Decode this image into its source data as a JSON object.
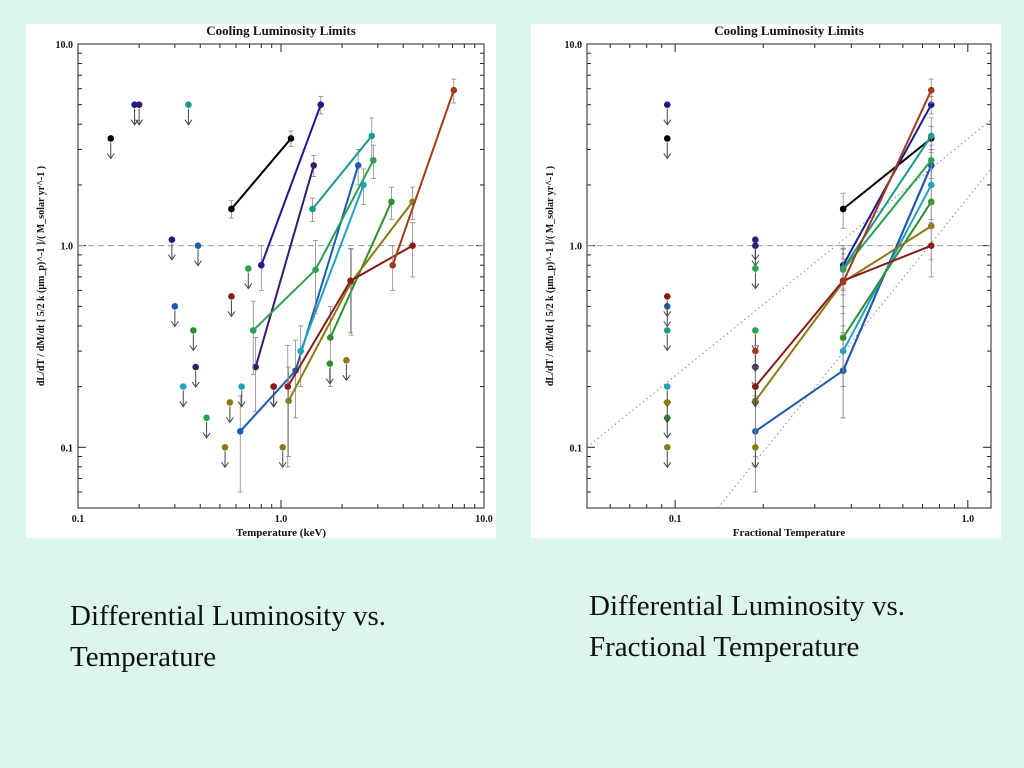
{
  "slide": {
    "background": "#dcf5ee",
    "captions": {
      "left": {
        "line1": "Differential Luminosity vs.",
        "line2": "Temperature"
      },
      "right": {
        "line1": "Differential Luminosity vs.",
        "line2": "Fractional Temperature"
      }
    }
  },
  "chart_data": [
    {
      "type": "scatter",
      "title": "Cooling Luminosity Limits",
      "xlabel": "Temperature (keV)",
      "ylabel": "dL/dT / dM/dt [ 5/2 k (μm_p)^-1 ]/( M_solar yr^-1 )",
      "xscale": "log",
      "yscale": "log",
      "xlim": [
        0.1,
        10.0
      ],
      "ylim": [
        0.05,
        10.0
      ],
      "x_ticks": [
        "0.1",
        "1.0",
        "10.0"
      ],
      "y_ticks": [
        "0.1",
        "1.0",
        "10.0"
      ],
      "reference_line_y": 1.0,
      "series": [
        {
          "color": "#000000",
          "limit": [
            0.145,
            3.4
          ],
          "points": [
            [
              0.57,
              1.52
            ],
            [
              1.12,
              3.4
            ]
          ],
          "err": [
            0.15,
            0.3
          ]
        },
        {
          "color": "#1a1a8c",
          "limit": [
            0.19,
            5.0
          ],
          "points": [
            [
              0.8,
              0.8
            ],
            [
              1.57,
              5.0
            ]
          ],
          "err": [
            0.2,
            0.5
          ]
        },
        {
          "color": "#3a1a6b",
          "limit": [
            0.2,
            5.0
          ],
          "points": [
            [
              0.75,
              0.25
            ],
            [
              1.45,
              2.5
            ]
          ],
          "err": [
            0.1,
            0.3
          ]
        },
        {
          "color": "#1e5bb0",
          "limit": [
            0.39,
            1.0
          ],
          "points": [
            [
              0.63,
              0.12
            ],
            [
              1.18,
              0.24
            ],
            [
              2.4,
              2.5
            ]
          ],
          "err": [
            0.06,
            0.1,
            0.5
          ]
        },
        {
          "color": "#1a9a8a",
          "limit": [
            0.35,
            5.0
          ],
          "points": [
            [
              1.43,
              1.52
            ],
            [
              2.8,
              3.5
            ]
          ],
          "err": [
            0.2,
            0.8
          ]
        },
        {
          "color": "#1fa3c0",
          "limit": [
            0.33,
            0.2
          ],
          "points": [
            [
              1.25,
              0.3
            ],
            [
              2.55,
              2.0
            ]
          ],
          "err": [
            0.1,
            0.4
          ]
        },
        {
          "color": "#2f8f2f",
          "limit": [
            0.37,
            0.38
          ],
          "points": [
            [
              1.75,
              0.35
            ],
            [
              3.5,
              1.65
            ]
          ],
          "err": [
            0.15,
            0.3
          ]
        },
        {
          "color": "#2ba050",
          "limit": [
            0.43,
            0.14
          ],
          "points": [
            [
              0.73,
              0.38
            ],
            [
              1.48,
              0.76
            ],
            [
              2.85,
              2.65
            ]
          ],
          "err": [
            0.15,
            0.3,
            0.5
          ]
        },
        {
          "color": "#8a7a10",
          "limit": [
            0.53,
            0.1
          ],
          "points": [
            [
              1.09,
              0.17
            ],
            [
              2.22,
              0.66
            ],
            [
              4.45,
              1.65
            ]
          ],
          "err": [
            0.08,
            0.3,
            0.3
          ]
        },
        {
          "color": "#8a1a1a",
          "limit": [
            0.57,
            0.56
          ],
          "points": [
            [
              1.08,
              0.2
            ],
            [
              2.2,
              0.67
            ],
            [
              4.45,
              1.0
            ]
          ],
          "err": [
            0.12,
            0.3,
            0.3
          ]
        },
        {
          "color": "#a33a1a",
          "limit": [
            0.92,
            0.2
          ],
          "points": [
            [
              3.55,
              0.8
            ],
            [
              7.1,
              5.9
            ]
          ],
          "err": [
            0.2,
            0.8
          ]
        }
      ],
      "extra_limits": [
        {
          "color": "#1a1a8c",
          "x": 0.29,
          "y": 1.07
        },
        {
          "color": "#1e5bb0",
          "x": 0.3,
          "y": 0.5
        },
        {
          "color": "#3a1a6b",
          "x": 0.38,
          "y": 0.25
        },
        {
          "color": "#1fa3c0",
          "x": 0.64,
          "y": 0.2
        },
        {
          "color": "#2ba050",
          "x": 0.69,
          "y": 0.77
        },
        {
          "color": "#8a7a10",
          "x": 0.56,
          "y": 0.167
        },
        {
          "color": "#8a1a1a",
          "x": 0.92,
          "y": 0.2
        },
        {
          "color": "#2f8f2f",
          "x": 1.74,
          "y": 0.26
        },
        {
          "color": "#8a7a10",
          "x": 1.02,
          "y": 0.1
        },
        {
          "color": "#8a7a10",
          "x": 2.1,
          "y": 0.27
        }
      ]
    },
    {
      "type": "scatter",
      "title": "Cooling Luminosity Limits",
      "xlabel": "Fractional Temperature",
      "ylabel": "dL/dT / dM/dt [ 5/2 k (μm_p)^-1 ]/( M_solar yr^-1 )",
      "xscale": "log",
      "yscale": "log",
      "xlim": [
        0.05,
        1.2
      ],
      "ylim": [
        0.05,
        10.0
      ],
      "x_ticks": [
        "0.1",
        "1.0"
      ],
      "y_ticks": [
        "0.1",
        "1.0",
        "10.0"
      ],
      "reference_line_y": 1.0,
      "dotted_lines": [
        {
          "from": [
            0.05,
            0.1
          ],
          "to": [
            1.2,
            4.2
          ]
        },
        {
          "from": [
            0.14,
            0.05
          ],
          "to": [
            1.2,
            2.4
          ]
        }
      ],
      "series": [
        {
          "color": "#000000",
          "limit": [
            0.094,
            3.4
          ],
          "points": [
            [
              0.375,
              1.52
            ],
            [
              0.75,
              3.4
            ]
          ],
          "err": [
            0.3,
            0.5
          ]
        },
        {
          "color": "#1a1a8c",
          "limit": [
            0.094,
            5.0
          ],
          "points": [
            [
              0.375,
              0.8
            ],
            [
              0.75,
              5.0
            ]
          ],
          "err": [
            0.2,
            0.5
          ]
        },
        {
          "color": "#3a1a6b",
          "limit": [
            0.188,
            0.25
          ],
          "points": [
            [
              0.375,
              0.24
            ],
            [
              0.75,
              2.5
            ]
          ],
          "err": [
            0.1,
            0.5
          ]
        },
        {
          "color": "#1e5bb0",
          "limit": [
            0.094,
            0.5
          ],
          "points": [
            [
              0.188,
              0.12
            ],
            [
              0.375,
              0.24
            ],
            [
              0.75,
              2.5
            ]
          ],
          "err": [
            0.06,
            0.1,
            0.5
          ]
        },
        {
          "color": "#1a9a8a",
          "limit": [
            0.094,
            0.38
          ],
          "points": [
            [
              0.375,
              0.77
            ],
            [
              0.75,
              3.5
            ]
          ],
          "err": [
            0.2,
            0.8
          ]
        },
        {
          "color": "#1fa3c0",
          "limit": [
            0.094,
            0.2
          ],
          "points": [
            [
              0.375,
              0.3
            ],
            [
              0.75,
              2.0
            ]
          ],
          "err": [
            0.1,
            0.4
          ]
        },
        {
          "color": "#2f8f2f",
          "limit": [
            0.094,
            0.14
          ],
          "points": [
            [
              0.375,
              0.35
            ],
            [
              0.75,
              1.65
            ]
          ],
          "err": [
            0.15,
            0.3
          ]
        },
        {
          "color": "#2ba050",
          "limit": [
            0.188,
            0.38
          ],
          "points": [
            [
              0.375,
              0.76
            ],
            [
              0.75,
              2.65
            ]
          ],
          "err": [
            0.15,
            0.5
          ]
        },
        {
          "color": "#8a7a10",
          "limit": [
            0.094,
            0.1
          ],
          "points": [
            [
              0.188,
              0.17
            ],
            [
              0.375,
              0.66
            ],
            [
              0.75,
              1.25
            ]
          ],
          "err": [
            0.08,
            0.3,
            0.4
          ]
        },
        {
          "color": "#8a1a1a",
          "limit": [
            0.094,
            0.56
          ],
          "points": [
            [
              0.188,
              0.2
            ],
            [
              0.375,
              0.67
            ],
            [
              0.75,
              1.0
            ]
          ],
          "err": [
            0.12,
            0.3,
            0.3
          ]
        },
        {
          "color": "#a33a1a",
          "limit": [
            0.188,
            0.3
          ],
          "points": [
            [
              0.375,
              0.66
            ],
            [
              0.75,
              5.9
            ]
          ],
          "err": [
            0.2,
            0.8
          ]
        }
      ],
      "extra_limits": [
        {
          "color": "#1a1a8c",
          "x": 0.188,
          "y": 1.0
        },
        {
          "color": "#3a1a6b",
          "x": 0.188,
          "y": 1.07
        },
        {
          "color": "#2ba050",
          "x": 0.188,
          "y": 0.77
        },
        {
          "color": "#8a7a10",
          "x": 0.094,
          "y": 0.167
        },
        {
          "color": "#8a7a10",
          "x": 0.188,
          "y": 0.1
        },
        {
          "color": "#2f8f2f",
          "x": 0.188,
          "y": 0.2
        },
        {
          "color": "#8a1a1a",
          "x": 0.188,
          "y": 0.2
        }
      ]
    }
  ]
}
